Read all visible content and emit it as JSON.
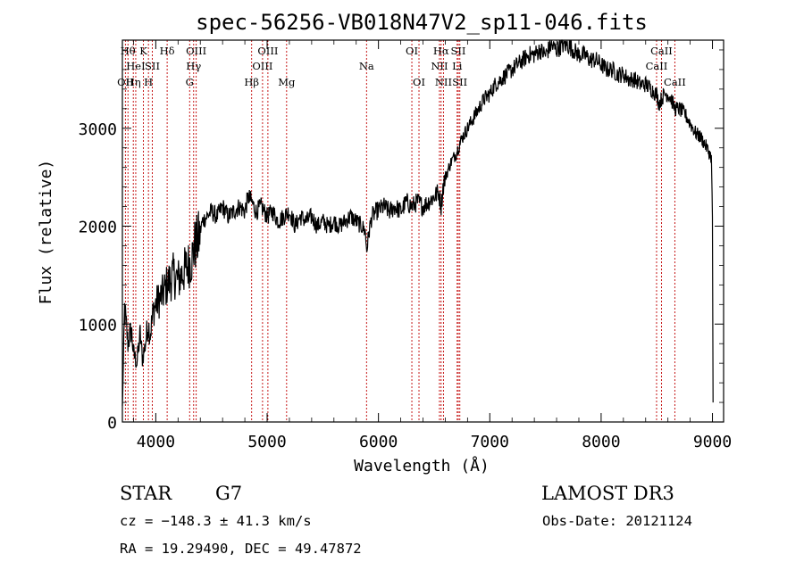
{
  "chart_data": {
    "type": "line",
    "title": "spec-56256-VB018N47V2_sp11-046.fits",
    "xlabel": "Wavelength (Å)",
    "ylabel": "Flux (relative)",
    "xlim": [
      3700,
      9100
    ],
    "ylim": [
      0,
      3900
    ],
    "xticks": [
      4000,
      5000,
      6000,
      7000,
      8000,
      9000
    ],
    "yticks": [
      0,
      1000,
      2000,
      3000
    ],
    "series": [
      {
        "name": "spectrum",
        "x": [
          3700,
          3720,
          3750,
          3780,
          3800,
          3830,
          3860,
          3880,
          3900,
          3930,
          3950,
          3980,
          4000,
          4030,
          4060,
          4080,
          4100,
          4130,
          4160,
          4200,
          4230,
          4260,
          4290,
          4320,
          4350,
          4380,
          4420,
          4460,
          4500,
          4550,
          4600,
          4650,
          4700,
          4750,
          4800,
          4830,
          4860,
          4900,
          4950,
          5000,
          5050,
          5100,
          5150,
          5200,
          5250,
          5300,
          5350,
          5400,
          5450,
          5500,
          5550,
          5600,
          5650,
          5700,
          5750,
          5800,
          5850,
          5880,
          5895,
          5910,
          5940,
          5980,
          6050,
          6100,
          6150,
          6200,
          6250,
          6300,
          6350,
          6400,
          6450,
          6500,
          6540,
          6563,
          6580,
          6600,
          6650,
          6700,
          6750,
          6800,
          6850,
          6900,
          6950,
          7000,
          7050,
          7100,
          7150,
          7200,
          7250,
          7300,
          7350,
          7400,
          7450,
          7500,
          7550,
          7600,
          7650,
          7700,
          7750,
          7800,
          7850,
          7900,
          7950,
          8000,
          8050,
          8100,
          8150,
          8200,
          8250,
          8300,
          8350,
          8400,
          8450,
          8498,
          8520,
          8542,
          8570,
          8600,
          8630,
          8662,
          8700,
          8750,
          8800,
          8850,
          8900,
          8950,
          8990,
          9000,
          9005
        ],
        "values": [
          150,
          1150,
          800,
          950,
          700,
          600,
          900,
          650,
          750,
          1000,
          900,
          1150,
          1200,
          1250,
          1300,
          1350,
          1400,
          1450,
          1500,
          1450,
          1500,
          1550,
          1600,
          1650,
          1800,
          1850,
          2050,
          2100,
          2150,
          2100,
          2200,
          2100,
          2150,
          2200,
          2150,
          2300,
          2250,
          2150,
          2200,
          2100,
          2150,
          2050,
          2100,
          2150,
          2000,
          2100,
          2050,
          2100,
          2000,
          2050,
          2000,
          2050,
          2000,
          2050,
          2100,
          2050,
          2000,
          1950,
          1750,
          1900,
          2100,
          2150,
          2200,
          2150,
          2200,
          2150,
          2250,
          2200,
          2250,
          2200,
          2250,
          2300,
          2350,
          2200,
          2400,
          2500,
          2650,
          2750,
          2900,
          3000,
          3100,
          3200,
          3300,
          3350,
          3450,
          3500,
          3550,
          3600,
          3650,
          3700,
          3750,
          3750,
          3800,
          3750,
          3850,
          3800,
          3850,
          3850,
          3800,
          3750,
          3750,
          3700,
          3700,
          3650,
          3600,
          3600,
          3550,
          3550,
          3500,
          3500,
          3450,
          3450,
          3400,
          3350,
          3250,
          3300,
          3350,
          3350,
          3300,
          3200,
          3200,
          3150,
          3050,
          2950,
          2900,
          2800,
          2700,
          2100,
          200
        ]
      }
    ],
    "spectral_lines": [
      {
        "x": 3727,
        "label": "OII",
        "row": 3
      },
      {
        "x": 3750,
        "label": "Hθ",
        "row": 1
      },
      {
        "x": 3798,
        "label": "Hη",
        "row": 3
      },
      {
        "x": 3820,
        "label": "HeI",
        "row": 2
      },
      {
        "x": 3889,
        "label": "K",
        "row": 1
      },
      {
        "x": 3934,
        "label": "H",
        "row": 3
      },
      {
        "x": 3969,
        "label": "SII",
        "row": 2
      },
      {
        "x": 4102,
        "label": "Hδ",
        "row": 1
      },
      {
        "x": 4304,
        "label": "G",
        "row": 3
      },
      {
        "x": 4340,
        "label": "Hγ",
        "row": 2
      },
      {
        "x": 4363,
        "label": "OIII",
        "row": 1
      },
      {
        "x": 4861,
        "label": "Hβ",
        "row": 3
      },
      {
        "x": 4959,
        "label": "OIII",
        "row": 2
      },
      {
        "x": 5007,
        "label": "OIII",
        "row": 1
      },
      {
        "x": 5175,
        "label": "Mg",
        "row": 3
      },
      {
        "x": 5893,
        "label": "Na",
        "row": 2
      },
      {
        "x": 6300,
        "label": "OI",
        "row": 1
      },
      {
        "x": 6364,
        "label": "OI",
        "row": 3
      },
      {
        "x": 6548,
        "label": "NII",
        "row": 2
      },
      {
        "x": 6563,
        "label": "Hα",
        "row": 1
      },
      {
        "x": 6584,
        "label": "NII",
        "row": 3
      },
      {
        "x": 6707,
        "label": "Li",
        "row": 2
      },
      {
        "x": 6717,
        "label": "SII",
        "row": 1
      },
      {
        "x": 6731,
        "label": "SII",
        "row": 3
      },
      {
        "x": 8498,
        "label": "CaII",
        "row": 2
      },
      {
        "x": 8542,
        "label": "CaII",
        "row": 1
      },
      {
        "x": 8662,
        "label": "CaII",
        "row": 3
      }
    ]
  },
  "info": {
    "object_class": "STAR",
    "subclass": "G7",
    "survey": "LAMOST DR3",
    "cz": "cz = −148.3 ± 41.3 km/s",
    "obs_date": "Obs-Date: 20121124",
    "coords": "RA =  19.29490, DEC =  49.47872"
  }
}
